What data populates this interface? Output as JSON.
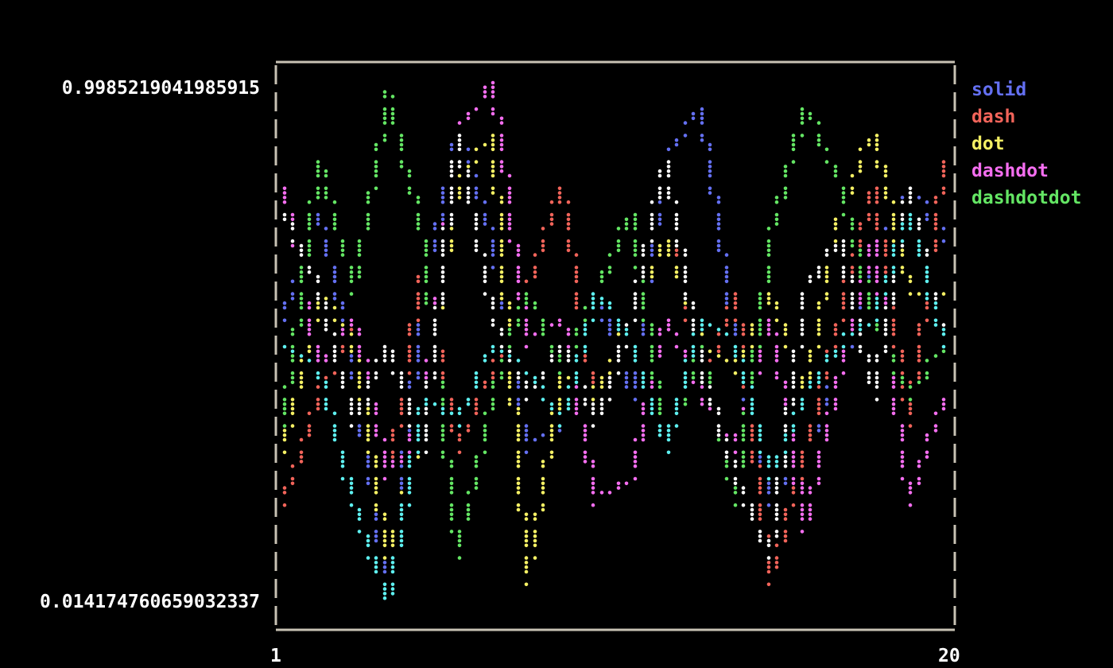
{
  "chart_data": {
    "type": "line",
    "title": "",
    "xlabel": "",
    "ylabel": "",
    "xlim": [
      1,
      20
    ],
    "ylim": [
      0.014174760659032337,
      0.9985219041985915
    ],
    "x_tick_labels": [
      "1",
      "20"
    ],
    "y_tick_labels": [
      "0.9985219041985915",
      "0.014174760659032337"
    ],
    "grid": false,
    "legend_position": "right",
    "x": [
      1,
      2,
      3,
      4,
      5,
      6,
      7,
      8,
      9,
      10,
      11,
      12,
      13,
      14,
      15,
      16,
      17,
      18,
      19,
      20
    ],
    "series": [
      {
        "name": "solid",
        "color": "#6470f2",
        "values": [
          0.55,
          0.75,
          0.45,
          0.02,
          0.6,
          0.9,
          0.7,
          0.3,
          0.35,
          0.6,
          0.4,
          0.85,
          0.95,
          0.5,
          0.2,
          0.3,
          0.45,
          0.65,
          0.8,
          0.7
        ]
      },
      {
        "name": "dash",
        "color": "#f2645a",
        "values": [
          0.2,
          0.4,
          0.55,
          0.25,
          0.65,
          0.3,
          0.45,
          0.6,
          0.8,
          0.35,
          0.55,
          0.85,
          0.4,
          0.6,
          0.05,
          0.3,
          0.55,
          0.8,
          0.35,
          0.85
        ]
      },
      {
        "name": "dot",
        "color": "#f5f064",
        "values": [
          0.3,
          0.6,
          0.5,
          0.1,
          0.35,
          0.8,
          0.9,
          0.05,
          0.45,
          0.4,
          0.55,
          0.7,
          0.5,
          0.45,
          0.6,
          0.4,
          0.75,
          0.9,
          0.6,
          0.6
        ]
      },
      {
        "name": "dashdot",
        "color": "#f56ef0",
        "values": [
          0.8,
          0.45,
          0.55,
          0.25,
          0.35,
          0.9,
          0.9985219041985915,
          0.5,
          0.55,
          0.2,
          0.25,
          0.55,
          0.4,
          0.3,
          0.55,
          0.15,
          0.45,
          0.7,
          0.2,
          0.4
        ]
      },
      {
        "name": "dashdotdot",
        "color": "#64e664",
        "values": [
          0.35,
          0.85,
          0.6,
          0.97,
          0.7,
          0.1,
          0.4,
          0.6,
          0.45,
          0.6,
          0.75,
          0.3,
          0.5,
          0.2,
          0.7,
          0.95,
          0.8,
          0.55,
          0.4,
          0.5
        ]
      },
      {
        "color": "#ffffff",
        "values": [
          0.75,
          0.6,
          0.35,
          0.5,
          0.3,
          0.9,
          0.55,
          0.4,
          0.5,
          0.35,
          0.55,
          0.85,
          0.45,
          0.25,
          0.1,
          0.6,
          0.7,
          0.4,
          0.8,
          0.5
        ]
      },
      {
        "color": "#5ef0f0",
        "values": [
          0.5,
          0.45,
          0.2,
          0.014174760659032337,
          0.4,
          0.35,
          0.5,
          0.45,
          0.35,
          0.6,
          0.5,
          0.3,
          0.55,
          0.5,
          0.25,
          0.4,
          0.5,
          0.55,
          0.75,
          0.5
        ]
      }
    ],
    "frame_color": "#c8c2b4"
  }
}
